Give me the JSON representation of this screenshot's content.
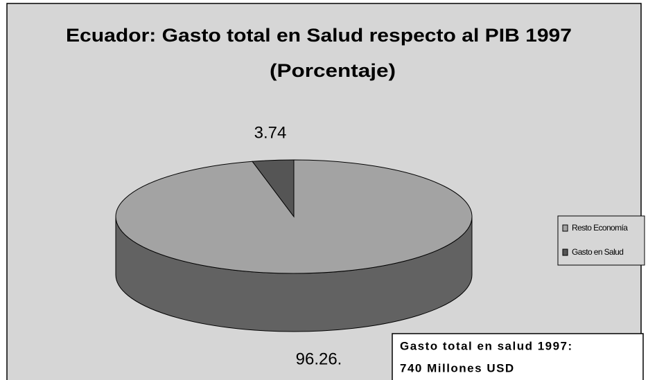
{
  "chart_data": {
    "type": "pie3d",
    "title": "Ecuador: Gasto total en Salud respecto al PIB 1997",
    "subtitle": "(Porcentaje)",
    "categories": [
      "Resto Economía",
      "Gasto en Salud"
    ],
    "values": [
      96.26,
      3.74
    ],
    "value_labels": [
      "96.26.",
      "3.74"
    ],
    "colors": [
      "#a3a3a3",
      "#555555"
    ],
    "legend": "right",
    "annotation": [
      "Gasto total en salud 1997:",
      "740 Millones USD"
    ]
  }
}
